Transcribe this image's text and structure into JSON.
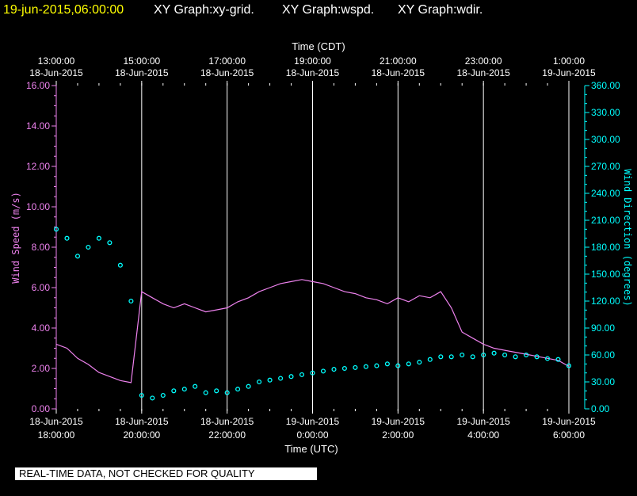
{
  "header": {
    "timestamp": "19-jun-2015,06:00:00",
    "graphs": [
      "XY Graph:xy-grid.",
      "XY Graph:wspd.",
      "XY Graph:wdir."
    ]
  },
  "disclaimer": "REAL-TIME DATA, NOT CHECKED FOR QUALITY",
  "colors": {
    "speed": "#ee82ee",
    "direction": "#00ffff",
    "grid": "#ffffff",
    "background": "#000000",
    "header_date": "#ffff00"
  },
  "chart_data": {
    "type": "line",
    "top_axis_title": "Time (CDT)",
    "bottom_axis_title": "Time (UTC)",
    "left_axis_title": "Wind Speed (m/s)",
    "right_axis_title": "Wind Direction (degrees)",
    "top_ticks": [
      {
        "time": "13:00:00",
        "date": "18-Jun-2015"
      },
      {
        "time": "15:00:00",
        "date": "18-Jun-2015"
      },
      {
        "time": "17:00:00",
        "date": "18-Jun-2015"
      },
      {
        "time": "19:00:00",
        "date": "18-Jun-2015"
      },
      {
        "time": "21:00:00",
        "date": "18-Jun-2015"
      },
      {
        "time": "23:00:00",
        "date": "18-Jun-2015"
      },
      {
        "time": "1:00:00",
        "date": "19-Jun-2015"
      }
    ],
    "bottom_ticks": [
      {
        "date": "18-Jun-2015",
        "time": "18:00:00"
      },
      {
        "date": "18-Jun-2015",
        "time": "20:00:00"
      },
      {
        "date": "18-Jun-2015",
        "time": "22:00:00"
      },
      {
        "date": "19-Jun-2015",
        "time": "0:00:00"
      },
      {
        "date": "19-Jun-2015",
        "time": "2:00:00"
      },
      {
        "date": "19-Jun-2015",
        "time": "4:00:00"
      },
      {
        "date": "19-Jun-2015",
        "time": "6:00:00"
      }
    ],
    "left_ticks": [
      "0.00",
      "2.00",
      "4.00",
      "6.00",
      "8.00",
      "10.00",
      "12.00",
      "14.00",
      "16.00"
    ],
    "right_ticks": [
      "0.00",
      "30.00",
      "60.00",
      "90.00",
      "120.00",
      "150.00",
      "180.00",
      "210.00",
      "240.00",
      "270.00",
      "300.00",
      "330.00",
      "360.00"
    ],
    "x_range_utc_hours": [
      18,
      30
    ],
    "ylim_left": [
      0,
      16
    ],
    "ylim_right": [
      0,
      360
    ],
    "grid": true,
    "series": [
      {
        "name": "Wind Speed (m/s)",
        "axis": "left",
        "style": "line",
        "x_hours_utc": [
          18.0,
          18.25,
          18.5,
          18.75,
          19.0,
          19.25,
          19.5,
          19.75,
          20.0,
          20.25,
          20.5,
          20.75,
          21.0,
          21.25,
          21.5,
          21.75,
          22.0,
          22.25,
          22.5,
          22.75,
          23.0,
          23.25,
          23.5,
          23.75,
          24.0,
          24.25,
          24.5,
          24.75,
          25.0,
          25.25,
          25.5,
          25.75,
          26.0,
          26.25,
          26.5,
          26.75,
          27.0,
          27.25,
          27.5,
          27.75,
          28.0,
          28.25,
          28.5,
          28.75,
          29.0,
          29.25,
          29.5,
          29.75,
          30.0
        ],
        "y": [
          3.2,
          3.0,
          2.5,
          2.2,
          1.8,
          1.6,
          1.4,
          1.3,
          5.8,
          5.5,
          5.2,
          5.0,
          5.2,
          5.0,
          4.8,
          4.9,
          5.0,
          5.3,
          5.5,
          5.8,
          6.0,
          6.2,
          6.3,
          6.4,
          6.3,
          6.2,
          6.0,
          5.8,
          5.7,
          5.5,
          5.4,
          5.2,
          5.5,
          5.3,
          5.6,
          5.5,
          5.8,
          5.0,
          3.8,
          3.5,
          3.2,
          3.0,
          2.9,
          2.8,
          2.7,
          2.6,
          2.5,
          2.4,
          2.1
        ]
      },
      {
        "name": "Wind Direction (degrees)",
        "axis": "right",
        "style": "scatter",
        "x_hours_utc": [
          18.0,
          18.25,
          18.5,
          18.75,
          19.0,
          19.25,
          19.5,
          19.75,
          20.0,
          20.25,
          20.5,
          20.75,
          21.0,
          21.25,
          21.5,
          21.75,
          22.0,
          22.25,
          22.5,
          22.75,
          23.0,
          23.25,
          23.5,
          23.75,
          24.0,
          24.25,
          24.5,
          24.75,
          25.0,
          25.25,
          25.5,
          25.75,
          26.0,
          26.25,
          26.5,
          26.75,
          27.0,
          27.25,
          27.5,
          27.75,
          28.0,
          28.25,
          28.5,
          28.75,
          29.0,
          29.25,
          29.5,
          29.75,
          30.0
        ],
        "y": [
          200,
          190,
          170,
          180,
          190,
          185,
          160,
          120,
          15,
          12,
          15,
          20,
          22,
          25,
          18,
          20,
          18,
          22,
          25,
          30,
          32,
          34,
          36,
          38,
          40,
          42,
          44,
          45,
          46,
          47,
          48,
          50,
          48,
          50,
          52,
          55,
          58,
          58,
          60,
          58,
          60,
          62,
          60,
          58,
          60,
          58,
          56,
          55,
          48
        ]
      }
    ]
  }
}
